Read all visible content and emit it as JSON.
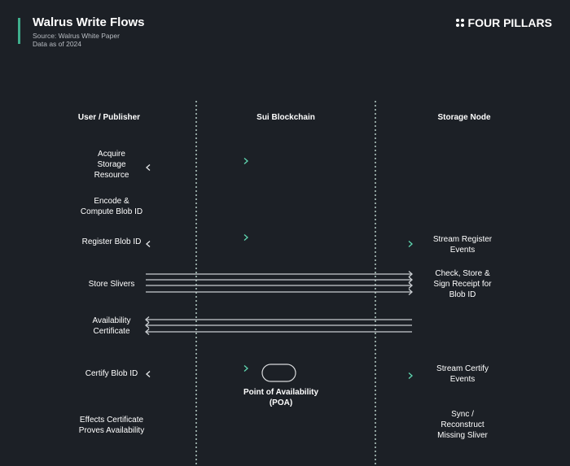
{
  "header": {
    "title": "Walrus Write Flows",
    "source": "Source: Walrus White Paper",
    "date": "Data as of 2024",
    "brand": "FOUR PILLARS",
    "brand_icon": "four-dots-icon"
  },
  "columns": {
    "left": "User / Publisher",
    "middle": "Sui Blockchain",
    "right": "Storage Node"
  },
  "left_labels": [
    "Acquire\nStorage\nResource",
    "Encode &\nCompute Blob ID",
    "Register Blob ID",
    "Store Slivers",
    "Availability\nCertificate",
    "Certify Blob ID",
    "Effects Certificate\nProves Availability"
  ],
  "right_labels": [
    "Stream Register\nEvents",
    "Check, Store &\nSign Receipt for\nBlob ID",
    "Stream Certify\nEvents",
    "Sync /\nReconstruct\nMissing Sliver"
  ],
  "poa_label": "Point of Availability\n(POA)",
  "colors": {
    "background": "#1c2026",
    "accent": "#3fae8c",
    "arrow_teal": "#5fd6b0",
    "arrow_white": "#e6e8ea"
  }
}
